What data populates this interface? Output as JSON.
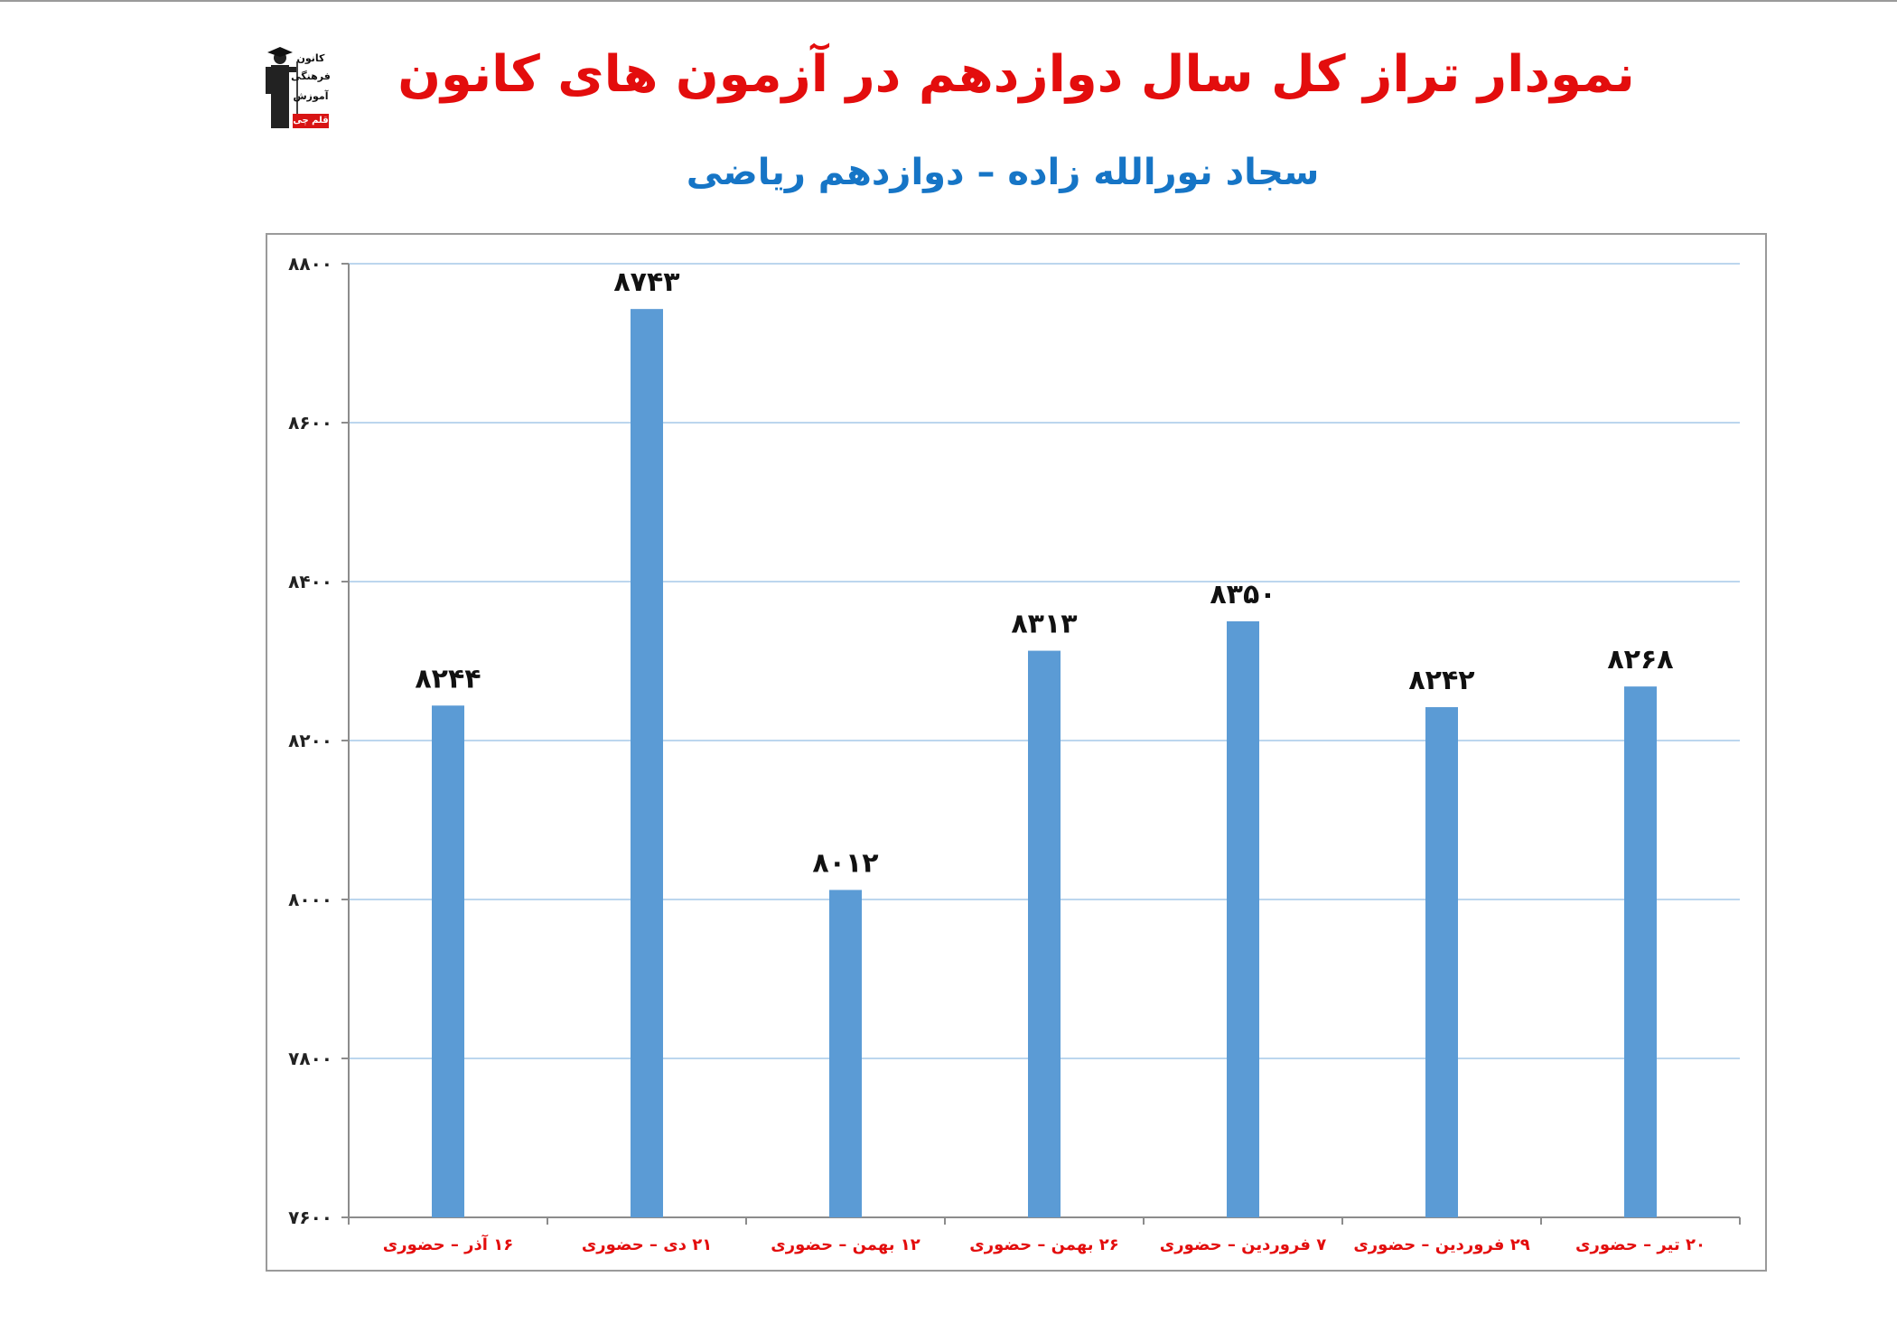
{
  "header": {
    "title": "نمودار تراز کل سال دوازدهم در آزمون های کانون",
    "subtitle": "سجاد نورالله زاده – دوازدهم ریاضی"
  },
  "logo": {
    "lines": [
      "کانون",
      "فرهنگی",
      "آموزش"
    ],
    "badge": "قلم چی",
    "icon": "graduate-icon"
  },
  "colors": {
    "title": "#e30d0d",
    "subtitle": "#1675c6",
    "bar": "#5b9bd5",
    "category_label": "#e30d0d",
    "grid": "#bcd6ee",
    "axis": "#8c8c8c"
  },
  "chart_data": {
    "type": "bar",
    "categories": [
      "۱۶ آذر – حضوری",
      "۲۱ دی – حضوری",
      "۱۲ بهمن – حضوری",
      "۲۶ بهمن – حضوری",
      "۷ فروردین – حضوری",
      "۲۹ فروردین – حضوری",
      "۲۰ تیر – حضوری"
    ],
    "values": [
      8244,
      8743,
      8012,
      8313,
      8350,
      8242,
      8268
    ],
    "data_labels": [
      "۸۲۴۴",
      "۸۷۴۳",
      "۸۰۱۲",
      "۸۳۱۳",
      "۸۳۵۰",
      "۸۲۴۲",
      "۸۲۶۸"
    ],
    "yticks": [
      7600,
      7800,
      8000,
      8200,
      8400,
      8600,
      8800
    ],
    "ytick_labels": [
      "۷۶۰۰",
      "۷۸۰۰",
      "۸۰۰۰",
      "۸۲۰۰",
      "۸۴۰۰",
      "۸۶۰۰",
      "۸۸۰۰"
    ],
    "ylim": [
      7600,
      8800
    ],
    "grid": true,
    "legend": "none",
    "title": "",
    "xlabel": "",
    "ylabel": ""
  }
}
